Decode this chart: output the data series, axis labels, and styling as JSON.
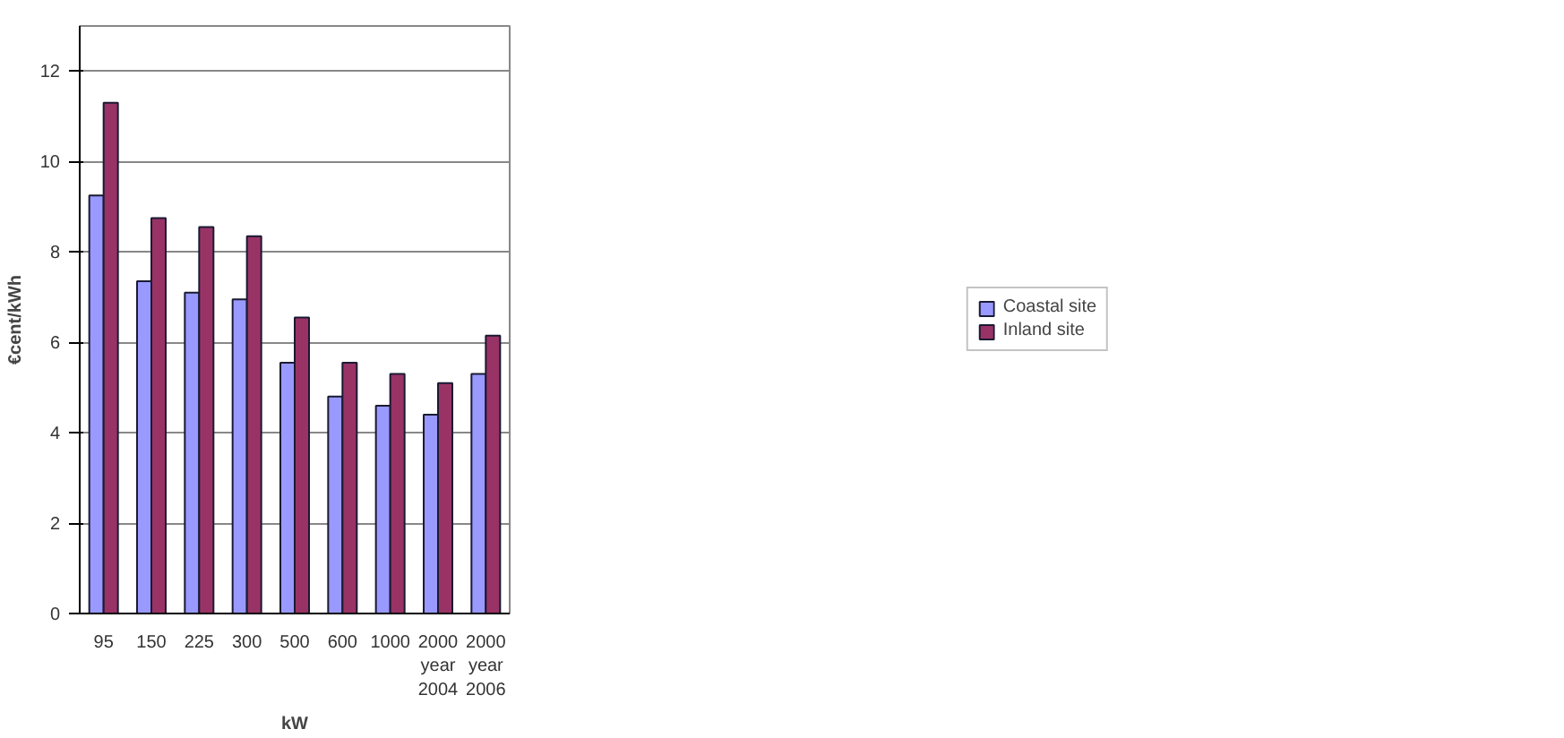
{
  "chart_data": {
    "type": "bar",
    "xlabel": "kW",
    "ylabel": "€cent/kWh",
    "categories": [
      "95",
      "150",
      "225",
      "300",
      "500",
      "600",
      "1000",
      "2000\nyear\n2004",
      "2000\nyear\n2006"
    ],
    "series": [
      {
        "name": "Coastal site",
        "color": "#9999ff",
        "values": [
          9.25,
          7.35,
          7.1,
          6.95,
          5.55,
          4.8,
          4.6,
          4.4,
          5.3
        ]
      },
      {
        "name": "Inland site",
        "color": "#993366",
        "values": [
          11.3,
          8.75,
          8.55,
          8.35,
          6.55,
          5.55,
          5.3,
          5.1,
          6.15
        ]
      }
    ],
    "ylim": [
      0,
      13
    ],
    "yticks": [
      0,
      2,
      4,
      6,
      8,
      10,
      12
    ],
    "grid": "y",
    "legend": "right"
  }
}
